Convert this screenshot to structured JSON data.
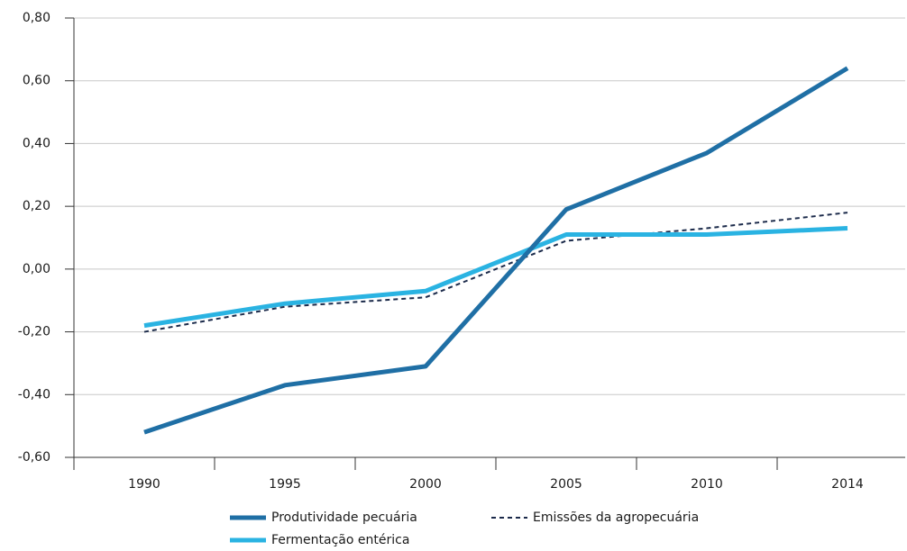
{
  "chart_data": {
    "type": "line",
    "categories": [
      "1990",
      "1995",
      "2000",
      "2005",
      "2010",
      "2014"
    ],
    "series": [
      {
        "name": "Produtividade pecuária",
        "color": "#1f6fa5",
        "line_style": "solid",
        "values": [
          -0.52,
          -0.37,
          -0.31,
          0.19,
          0.37,
          0.64
        ]
      },
      {
        "name": "Emissões da agropecuária",
        "color": "#1b2a4a",
        "line_style": "dashed",
        "values": [
          -0.2,
          -0.12,
          -0.09,
          0.09,
          0.13,
          0.18
        ]
      },
      {
        "name": "Fermentação entérica",
        "color": "#2ab3e2",
        "line_style": "solid",
        "values": [
          -0.18,
          -0.11,
          -0.07,
          0.11,
          0.11,
          0.13
        ]
      }
    ],
    "ylim": [
      -0.6,
      0.8
    ],
    "yticks": [
      {
        "value": -0.6,
        "label": "-0,60"
      },
      {
        "value": -0.4,
        "label": "-0,40"
      },
      {
        "value": -0.2,
        "label": "-0,20"
      },
      {
        "value": 0,
        "label": "0,00"
      },
      {
        "value": 0.2,
        "label": "0,20"
      },
      {
        "value": 0.4,
        "label": "0,40"
      },
      {
        "value": 0.6,
        "label": "0,60"
      },
      {
        "value": 0.8,
        "label": "0,80"
      }
    ],
    "grid": true,
    "legend": "bottom"
  }
}
